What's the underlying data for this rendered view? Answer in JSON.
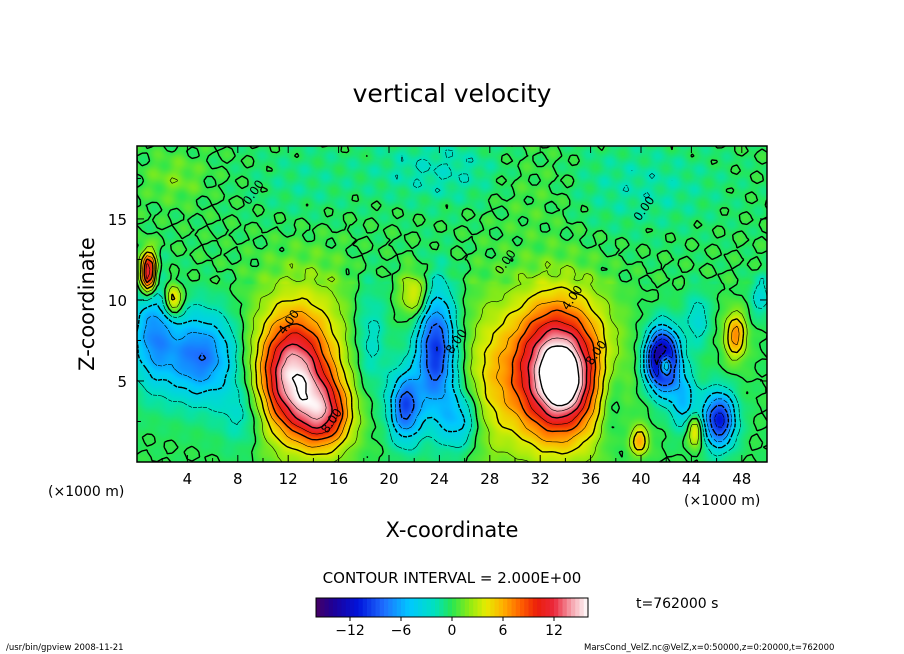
{
  "chart_data": {
    "type": "heatmap",
    "title": "vertical velocity",
    "xlabel": "X-coordinate",
    "ylabel": "Z-coordinate",
    "x_unit_left": "(×1000 m)",
    "x_unit_right": "(×1000 m)",
    "xlim": [
      0,
      50
    ],
    "ylim": [
      0,
      19.5
    ],
    "x_ticks": [
      4,
      8,
      12,
      16,
      20,
      24,
      28,
      32,
      36,
      40,
      44,
      48
    ],
    "y_ticks": [
      5,
      10,
      15
    ],
    "contour_interval_text": "CONTOUR INTERVAL = 2.000E+00",
    "contour_labels": [
      {
        "text": "0.00",
        "x": 9.5,
        "y": 16.5
      },
      {
        "text": "0.00",
        "x": 40.5,
        "y": 15.5
      },
      {
        "text": "0.00",
        "x": 29.5,
        "y": 12.2
      },
      {
        "text": "4.00",
        "x": 12.3,
        "y": 8.5
      },
      {
        "text": "8.00",
        "x": 15.7,
        "y": 2.4
      },
      {
        "text": "4.00",
        "x": 34.8,
        "y": 10.0
      },
      {
        "text": "8.00",
        "x": 36.7,
        "y": 6.6
      },
      {
        "text": "8.00",
        "x": 25.6,
        "y": 7.3
      }
    ],
    "time_label": "t=762000 s",
    "colorbar": {
      "range": [
        -16,
        16
      ],
      "ticks": [
        -12,
        -6,
        0,
        6,
        12
      ]
    },
    "features": [
      {
        "x": 33.3,
        "y": 5.6,
        "amp": 17,
        "sx": 2.6,
        "sy": 3.0
      },
      {
        "x": 33.8,
        "y": 5.0,
        "amp": 6,
        "sx": 1.0,
        "sy": 1.3
      },
      {
        "x": 12.3,
        "y": 5.2,
        "amp": 12,
        "sx": 1.9,
        "sy": 2.4
      },
      {
        "x": 14.9,
        "y": 2.9,
        "amp": 9,
        "sx": 1.5,
        "sy": 1.5
      },
      {
        "x": 13.3,
        "y": 6.8,
        "amp": 4,
        "sx": 2.8,
        "sy": 3.6
      },
      {
        "x": 41.7,
        "y": 6.3,
        "amp": -17,
        "sx": 0.9,
        "sy": 1.3
      },
      {
        "x": 41.9,
        "y": 6.0,
        "amp": 12,
        "sx": 0.35,
        "sy": 0.5
      },
      {
        "x": 23.7,
        "y": 6.9,
        "amp": -10,
        "sx": 1.1,
        "sy": 2.6
      },
      {
        "x": 21.3,
        "y": 3.4,
        "amp": -9,
        "sx": 0.9,
        "sy": 1.5
      },
      {
        "x": 5.0,
        "y": 6.5,
        "amp": -8,
        "sx": 2.1,
        "sy": 1.9
      },
      {
        "x": 1.2,
        "y": 8.0,
        "amp": -6,
        "sx": 1.2,
        "sy": 2.2
      },
      {
        "x": 46.2,
        "y": 2.6,
        "amp": -11,
        "sx": 0.9,
        "sy": 1.2
      },
      {
        "x": 43.4,
        "y": 3.8,
        "amp": -5,
        "sx": 0.8,
        "sy": 1.2
      },
      {
        "x": 0.9,
        "y": 11.7,
        "amp": 13,
        "sx": 0.45,
        "sy": 0.9
      },
      {
        "x": 2.9,
        "y": 10.0,
        "amp": 7,
        "sx": 0.5,
        "sy": 0.7
      },
      {
        "x": 47.5,
        "y": 7.8,
        "amp": 7,
        "sx": 0.6,
        "sy": 1.0
      },
      {
        "x": 39.9,
        "y": 1.3,
        "amp": 6,
        "sx": 0.5,
        "sy": 0.6
      },
      {
        "x": 44.3,
        "y": 1.9,
        "amp": 6,
        "sx": 0.4,
        "sy": 0.7
      },
      {
        "x": 22.1,
        "y": 10.3,
        "amp": 5,
        "sx": 0.8,
        "sy": 1.0
      },
      {
        "x": 27.9,
        "y": 5.0,
        "amp": 3,
        "sx": 1.4,
        "sy": 3.5
      },
      {
        "x": 25.6,
        "y": 2.6,
        "amp": -5,
        "sx": 1.2,
        "sy": 1.3
      },
      {
        "x": 18.5,
        "y": 7.5,
        "amp": -3,
        "sx": 1.0,
        "sy": 2.5
      },
      {
        "x": 8.5,
        "y": 3.0,
        "amp": -3,
        "sx": 1.3,
        "sy": 1.5
      },
      {
        "x": 37.6,
        "y": 4.0,
        "amp": -3,
        "sx": 0.8,
        "sy": 2.0
      },
      {
        "x": 44.5,
        "y": 8.8,
        "amp": -3,
        "sx": 0.7,
        "sy": 1.2
      },
      {
        "x": 49.5,
        "y": 10.2,
        "amp": -3,
        "sx": 0.6,
        "sy": 0.9
      },
      {
        "x": 24.0,
        "y": 18.0,
        "amp": -2,
        "sx": 4.0,
        "sy": 1.5
      },
      {
        "x": 40.0,
        "y": 17.0,
        "amp": -1.5,
        "sx": 5.0,
        "sy": 2.0
      },
      {
        "x": 13.0,
        "y": 17.0,
        "amp": -1,
        "sx": 3.0,
        "sy": 2.0
      },
      {
        "x": 3.0,
        "y": 17.5,
        "amp": 1.5,
        "sx": 1.6,
        "sy": 1.0
      },
      {
        "x": 31.5,
        "y": 17.0,
        "amp": 1,
        "sx": 2.5,
        "sy": 2.0
      }
    ]
  },
  "footer": {
    "left": "/usr/bin/gpview   2008-11-21",
    "right": "MarsCond_VelZ.nc@VelZ,x=0:50000,z=0:20000,t=762000"
  }
}
